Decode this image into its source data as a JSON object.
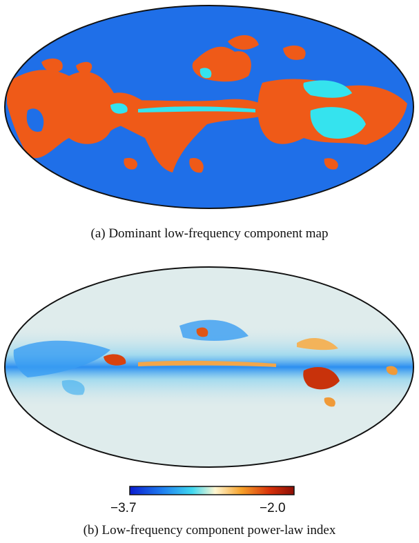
{
  "panel_a": {
    "caption": "(a)  Dominant low-frequency component map",
    "colors": {
      "background": "#1f6fe8",
      "dominant": "#ef5a18",
      "secondary": "#35e3ee"
    }
  },
  "panel_b": {
    "caption": "(b)  Low-frequency component power-law index",
    "colorbar": {
      "min_label": "−3.7",
      "max_label": "−2.0",
      "min": -3.7,
      "max": -2.0,
      "colors": [
        "#0a1cd0",
        "#1f7ff0",
        "#40d8f0",
        "#fff7d2",
        "#f6a12a",
        "#d8320a",
        "#8c0e06"
      ]
    }
  }
}
